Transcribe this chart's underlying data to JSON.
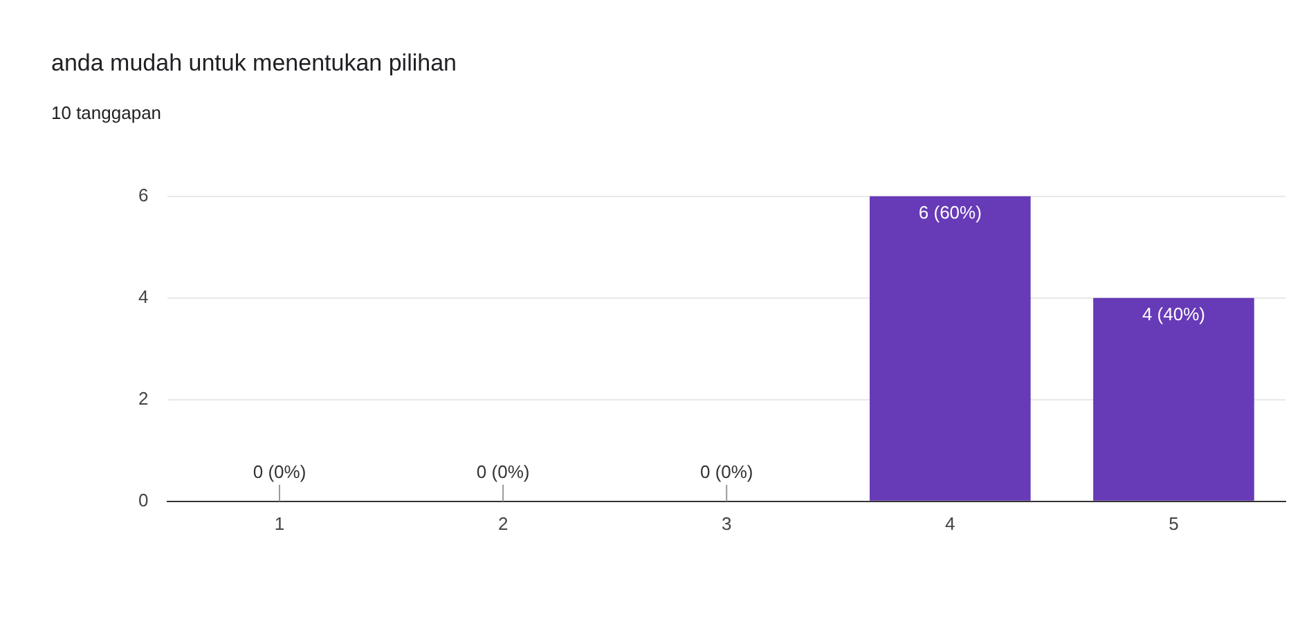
{
  "chart_data": {
    "type": "bar",
    "title": "anda mudah untuk menentukan pilihan",
    "subtitle": "10 tanggapan",
    "categories": [
      "1",
      "2",
      "3",
      "4",
      "5"
    ],
    "values": [
      0,
      0,
      0,
      6,
      4
    ],
    "value_labels": [
      "0 (0%)",
      "0 (0%)",
      "0 (0%)",
      "6 (60%)",
      "4 (40%)"
    ],
    "color": "#673ab7",
    "ylim": [
      0,
      6
    ],
    "yticks": [
      0,
      2,
      4,
      6
    ],
    "grid": "y",
    "legend": false
  }
}
